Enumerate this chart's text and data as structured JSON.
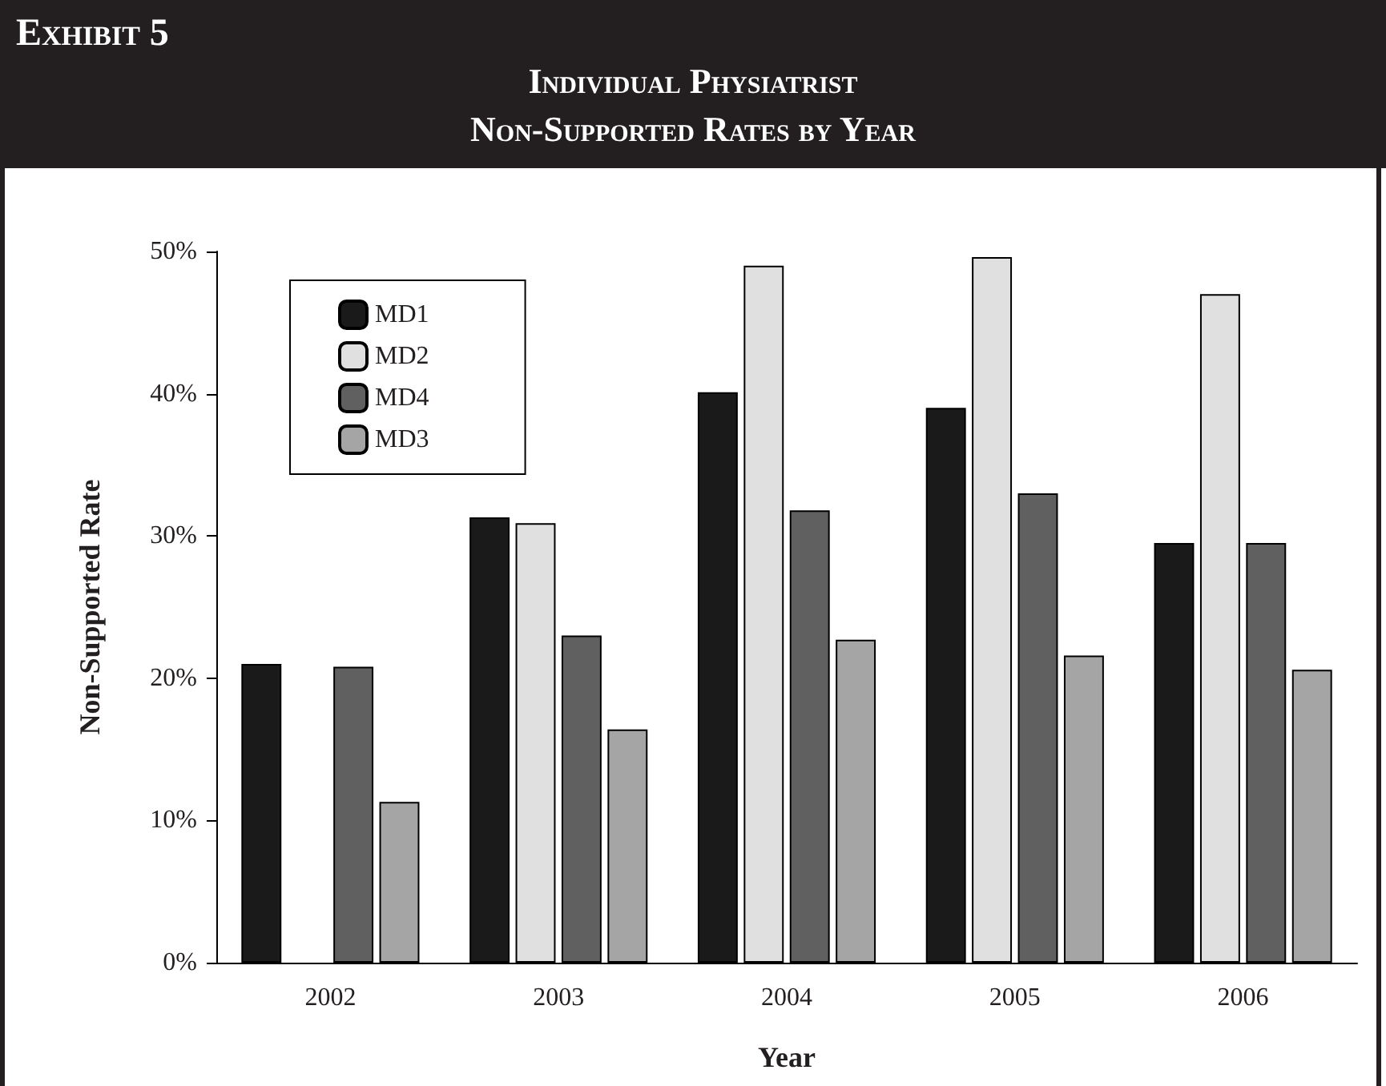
{
  "chart_data": {
    "type": "bar",
    "title": "Individual Physiatrist\nNon-Supported Rates by Year",
    "annotations": [
      "Exhibit 5"
    ],
    "xlabel": "Year",
    "ylabel": "Non-Supported Rate",
    "categories": [
      "2002",
      "2003",
      "2004",
      "2005",
      "2006"
    ],
    "series": [
      {
        "name": "MD1",
        "color": "#1a1a1a",
        "values": [
          21,
          31.3,
          40.1,
          39,
          29.5
        ]
      },
      {
        "name": "MD2",
        "color": "#e0e0e0",
        "values": [
          null,
          30.9,
          49,
          49.6,
          47
        ]
      },
      {
        "name": "MD4",
        "color": "#606060",
        "values": [
          20.8,
          23,
          31.8,
          33,
          29.5
        ]
      },
      {
        "name": "MD3",
        "color": "#a5a5a5",
        "values": [
          11.3,
          16.4,
          22.7,
          21.6,
          20.6
        ]
      }
    ],
    "ylim": [
      0,
      50
    ],
    "yticks": [
      {
        "value": 0,
        "label": "0%"
      },
      {
        "value": 10,
        "label": "10%"
      },
      {
        "value": 20,
        "label": "20%"
      },
      {
        "value": 30,
        "label": "30%"
      },
      {
        "value": 40,
        "label": "40%"
      },
      {
        "value": 50,
        "label": "50%"
      }
    ],
    "grid": false,
    "legend": "top left"
  }
}
